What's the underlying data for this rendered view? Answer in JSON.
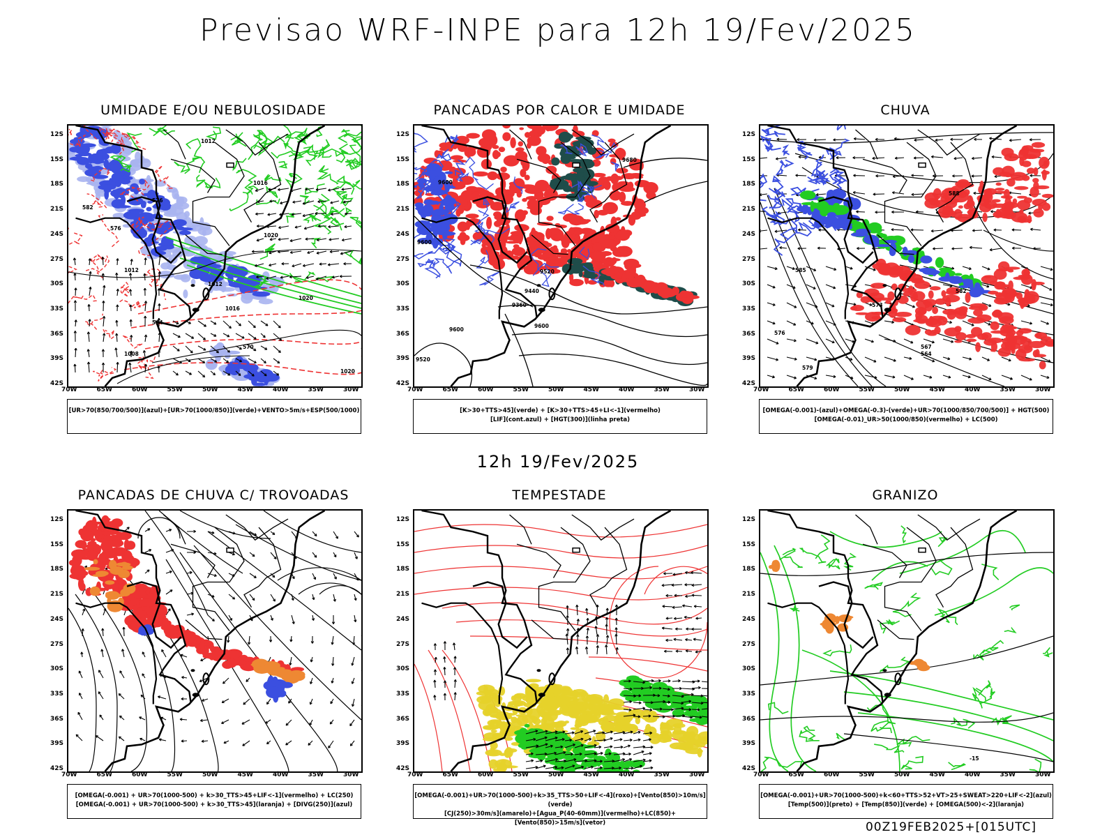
{
  "title": "Previsao WRF-INPE  para 12h 19/Fev/2025",
  "mid_title": "12h 19/Fev/2025",
  "footer": "00Z19FEB2025+[015UTC]",
  "lat_ticks": [
    "12S",
    "15S",
    "18S",
    "21S",
    "24S",
    "27S",
    "30S",
    "33S",
    "36S",
    "39S",
    "42S"
  ],
  "lon_ticks": [
    "70W",
    "65W",
    "60W",
    "55W",
    "50W",
    "45W",
    "40W",
    "35W",
    "30W"
  ],
  "colors": {
    "blue": "#3b4fe0",
    "lightblue": "#a9b4f0",
    "green": "#22cc22",
    "red": "#ee3333",
    "darkgreen": "#1f4d4a",
    "orange": "#ee8833",
    "yellow": "#e6d22a",
    "purple": "#aa22cc"
  },
  "panels": [
    {
      "title": "UMIDADE E/OU NEBULOSIDADE",
      "legend": [
        "[UR>70(850/700/500)](azul)+[UR>70(1000/850)](verde)+VENTO>5m/s+ESP(500/1000)"
      ],
      "contour_labels": [
        "1012",
        "1016",
        "1020",
        "1012",
        "1016",
        "1020",
        "1012",
        "576",
        "582",
        "576",
        "564",
        "570",
        "1008",
        "1020"
      ]
    },
    {
      "title": "PANCADAS POR CALOR E UMIDADE",
      "legend": [
        "[K>30+TTS>45](verde) + [K>30+TTS>45+LI<-1](vermelho)",
        "[LIF](cont.azul) + [HGT(300)](linha preta)"
      ],
      "contour_labels": [
        "9680",
        "9600",
        "9600",
        "9520",
        "9440",
        "9360",
        "9600",
        "9520",
        "9600"
      ]
    },
    {
      "title": "CHUVA",
      "legend": [
        "[OMEGA(-0.001)-(azul)+OMEGA(-0.3)-(verde)+UR>70(1000/850/700/500)] + HGT(500)",
        "[OMEGA(-0.01)_UR>50(1000/850)(vermelho) + LC(500)"
      ],
      "contour_labels": [
        "588",
        "582",
        "579",
        "576",
        "573",
        "567",
        "564",
        "585"
      ]
    },
    {
      "title": "PANCADAS DE CHUVA C/ TROVOADAS",
      "legend": [
        "[OMEGA(-0.001) + UR>70(1000-500) + k>30_TTS>45+LIF<-1](vermelho) + LC(250)",
        "[OMEGA(-0.001) + UR>70(1000-500) + k>30_TTS>45](laranja) + [DIVG(250)](azul)"
      ],
      "contour_labels": []
    },
    {
      "title": "TEMPESTADE",
      "legend": [
        "[OMEGA(-0.001)+UR>70(1000-500)+k>35_TTS>50+LIF<-4](roxo)+[Vento(850)>10m/s](verde)",
        "[CJ(250)>30m/s](amarelo)+[Agua_P(40-60mm)](vermelho)+LC(850)+[Vento(850)>15m/s](vetor)"
      ],
      "contour_labels": []
    },
    {
      "title": "GRANIZO",
      "legend": [
        "[OMEGA(-0.001)+UR>70(1000-500)+k<60+TTS>52+VT>25+SWEAT>220+LIF<-2](azul)",
        "[Temp(500)](preto) + [Temp(850)](verde) + [OMEGA(500)<-2](laranja)"
      ],
      "contour_labels": [
        "-15"
      ]
    }
  ]
}
